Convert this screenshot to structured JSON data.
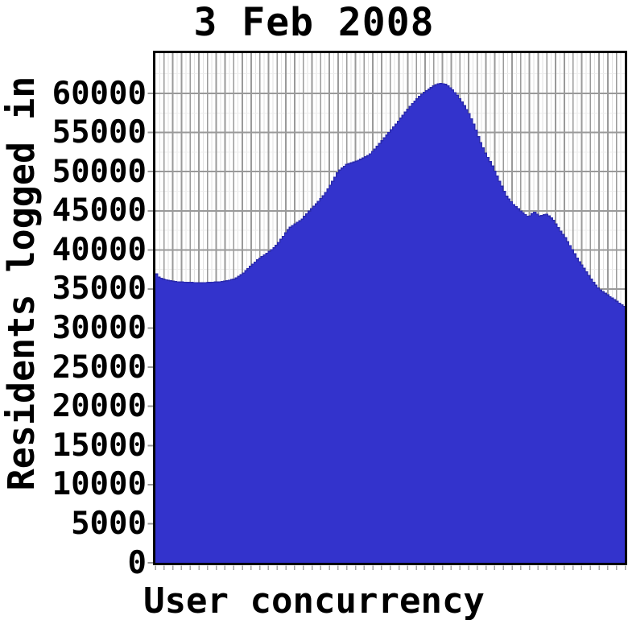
{
  "page": {
    "background": "#ffffff"
  },
  "colors": {
    "frame": "#000000",
    "grid_major": "#9a9a9a",
    "grid_minor_v": "#e2e2e2",
    "grid_minor_h": "#ededed",
    "tick": "#999999",
    "bottom_tick": "#a6a6a6",
    "area_fill": "#3333cc",
    "area_edge": "#2a2aad",
    "plot_background": "#ffffff",
    "text": "#000000"
  },
  "chart_data": {
    "type": "area",
    "title": "3 Feb 2008",
    "xlabel": "User concurrency",
    "ylabel": "Residents logged in",
    "ylim": [
      0,
      65000
    ],
    "yticks": [
      0,
      5000,
      10000,
      15000,
      20000,
      25000,
      30000,
      35000,
      40000,
      45000,
      50000,
      55000,
      60000
    ],
    "x_tick_labels": [],
    "grid": {
      "horizontal_major": true,
      "vertical_minor": true,
      "style": "fine gray grid on white"
    },
    "legend": "none",
    "peak_value_approx": 61300,
    "start_value_approx": 37100,
    "end_value_approx": 32700,
    "series": [
      {
        "name": "Residents logged in",
        "fill_color": "#3333cc",
        "points_format": "[x_percent_of_axis, residents]",
        "points": [
          [
            0,
            37100
          ],
          [
            0.8,
            36500
          ],
          [
            2.0,
            36200
          ],
          [
            4.2,
            35950
          ],
          [
            6.8,
            35850
          ],
          [
            9.3,
            35800
          ],
          [
            11.9,
            35850
          ],
          [
            14.4,
            35950
          ],
          [
            17.0,
            36300
          ],
          [
            18.7,
            37000
          ],
          [
            20.4,
            38000
          ],
          [
            22.1,
            38900
          ],
          [
            23.8,
            39600
          ],
          [
            25.5,
            40400
          ],
          [
            27.2,
            41700
          ],
          [
            28.5,
            42800
          ],
          [
            29.9,
            43400
          ],
          [
            31.2,
            43900
          ],
          [
            32.8,
            45000
          ],
          [
            34.3,
            45900
          ],
          [
            36.0,
            47100
          ],
          [
            37.7,
            48700
          ],
          [
            39.0,
            50100
          ],
          [
            40.7,
            50900
          ],
          [
            42.6,
            51300
          ],
          [
            44.5,
            51800
          ],
          [
            45.8,
            52300
          ],
          [
            47.2,
            53200
          ],
          [
            48.7,
            54300
          ],
          [
            50.3,
            55400
          ],
          [
            51.8,
            56500
          ],
          [
            53.5,
            57800
          ],
          [
            55.2,
            59000
          ],
          [
            56.9,
            60000
          ],
          [
            58.6,
            60700
          ],
          [
            59.9,
            61200
          ],
          [
            61.0,
            61300
          ],
          [
            62.0,
            61100
          ],
          [
            63.0,
            60600
          ],
          [
            64.2,
            59800
          ],
          [
            65.4,
            58800
          ],
          [
            66.7,
            57500
          ],
          [
            67.9,
            55900
          ],
          [
            69.1,
            53900
          ],
          [
            70.3,
            52300
          ],
          [
            71.6,
            50900
          ],
          [
            73.0,
            49100
          ],
          [
            74.7,
            46900
          ],
          [
            76.4,
            45700
          ],
          [
            78.1,
            44800
          ],
          [
            79.5,
            44200
          ],
          [
            80.6,
            44900
          ],
          [
            81.8,
            44300
          ],
          [
            83.2,
            44600
          ],
          [
            84.6,
            43900
          ],
          [
            85.9,
            42700
          ],
          [
            87.3,
            41500
          ],
          [
            88.6,
            40200
          ],
          [
            90.0,
            38700
          ],
          [
            91.3,
            37600
          ],
          [
            92.7,
            36300
          ],
          [
            94.1,
            35200
          ],
          [
            95.4,
            34600
          ],
          [
            96.8,
            34000
          ],
          [
            98.1,
            33500
          ],
          [
            99.2,
            33000
          ],
          [
            100,
            32700
          ]
        ]
      }
    ]
  }
}
